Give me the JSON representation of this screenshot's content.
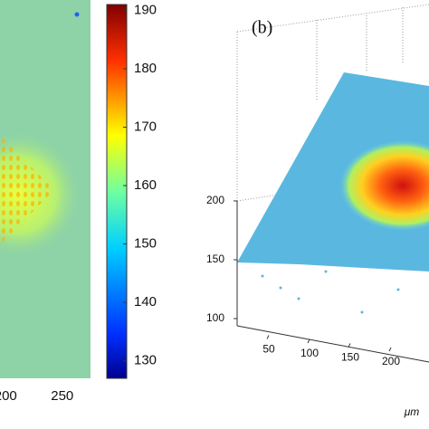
{
  "chart_data": [
    {
      "type": "heatmap",
      "xlim": [
        195,
        275
      ],
      "xticks": [
        200,
        250
      ],
      "colorbar": {
        "lim": [
          127,
          191
        ],
        "ticks": [
          130,
          140,
          150,
          160,
          170,
          180,
          190
        ]
      }
    },
    {
      "type": "surface3d",
      "label": "(b)",
      "zlim": [
        100,
        200
      ],
      "zticks": [
        100,
        150,
        200
      ],
      "xlim": [
        0,
        250
      ],
      "xticks": [
        50,
        100,
        150,
        200
      ],
      "xlabel": "μm"
    }
  ]
}
